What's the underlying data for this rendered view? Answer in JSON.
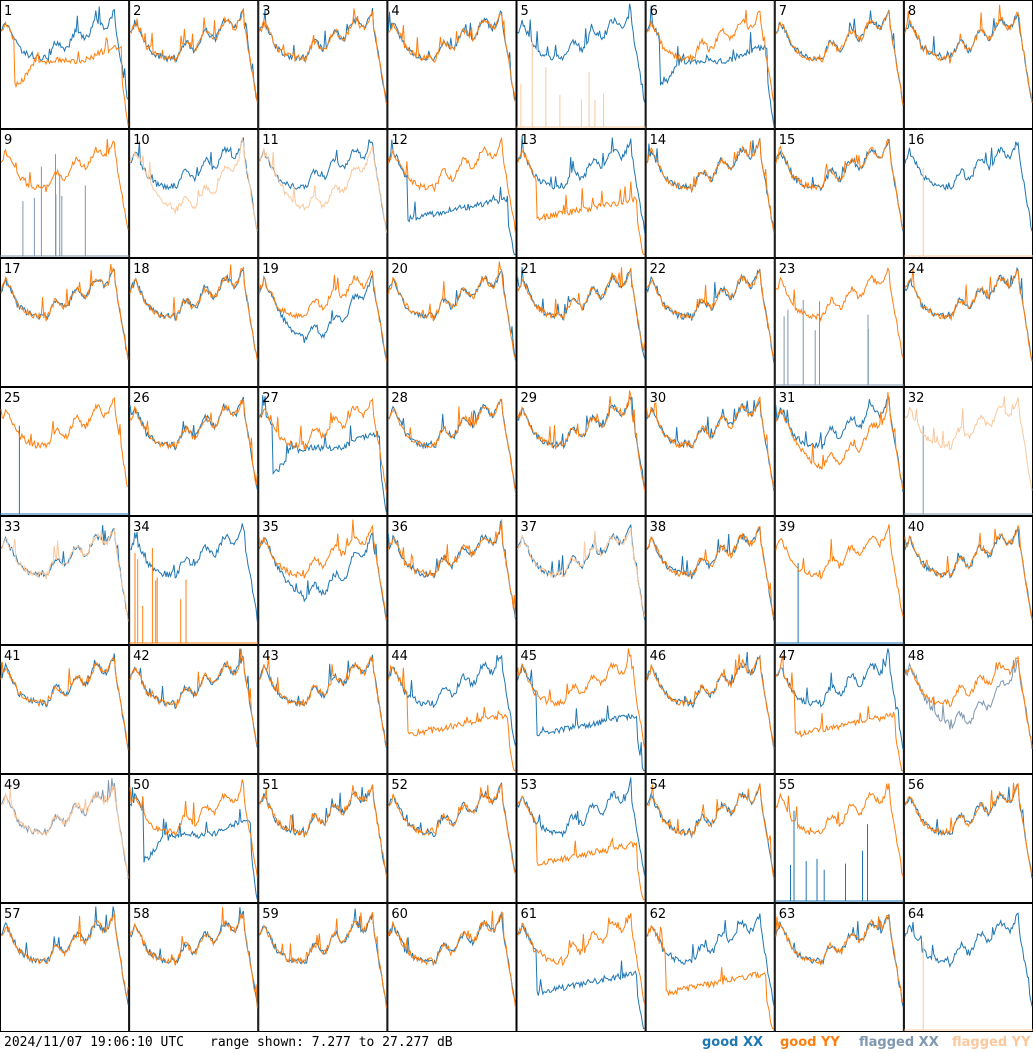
{
  "footer": {
    "timestamp": "2024/11/07 19:06:10 UTC",
    "range": "range shown: 7.277 to 27.277 dB"
  },
  "legend": [
    {
      "label": "good XX",
      "color": "#1f77b4"
    },
    {
      "label": "good YY",
      "color": "#ff7f0e"
    },
    {
      "label": "flagged XX",
      "color": "#7f98b0"
    },
    {
      "label": "flagged YY",
      "color": "#fbc89c"
    }
  ],
  "chart_data": {
    "type": "line",
    "ylim": [
      7.277,
      27.277
    ],
    "yunit": "dB",
    "grid_rows": 8,
    "grid_cols": 8,
    "panels": [
      {
        "id": "1",
        "xx": "good",
        "yy": "good",
        "xx_shape": "normal",
        "yy_shape": "drop"
      },
      {
        "id": "2",
        "xx": "good",
        "yy": "good",
        "xx_shape": "normal",
        "yy_shape": "normal"
      },
      {
        "id": "3",
        "xx": "good",
        "yy": "good",
        "xx_shape": "normal",
        "yy_shape": "normal"
      },
      {
        "id": "4",
        "xx": "good",
        "yy": "good",
        "xx_shape": "normal",
        "yy_shape": "normal"
      },
      {
        "id": "5",
        "xx": "good",
        "yy": "flagged",
        "xx_shape": "normal",
        "yy_shape": "sparse"
      },
      {
        "id": "6",
        "xx": "good",
        "yy": "good",
        "xx_shape": "drop",
        "yy_shape": "normal"
      },
      {
        "id": "7",
        "xx": "good",
        "yy": "good",
        "xx_shape": "normal",
        "yy_shape": "normal"
      },
      {
        "id": "8",
        "xx": "good",
        "yy": "good",
        "xx_shape": "normal",
        "yy_shape": "normal"
      },
      {
        "id": "9",
        "xx": "flagged",
        "yy": "good",
        "xx_shape": "sparse",
        "yy_shape": "normal"
      },
      {
        "id": "10",
        "xx": "good",
        "yy": "flagged",
        "xx_shape": "normal",
        "yy_shape": "dip"
      },
      {
        "id": "11",
        "xx": "good",
        "yy": "flagged",
        "xx_shape": "normal",
        "yy_shape": "dip"
      },
      {
        "id": "12",
        "xx": "good",
        "yy": "good",
        "xx_shape": "lowflat",
        "yy_shape": "normal"
      },
      {
        "id": "13",
        "xx": "good",
        "yy": "good",
        "xx_shape": "normal",
        "yy_shape": "lowflat"
      },
      {
        "id": "14",
        "xx": "good",
        "yy": "good",
        "xx_shape": "normal",
        "yy_shape": "normal"
      },
      {
        "id": "15",
        "xx": "good",
        "yy": "good",
        "xx_shape": "normal",
        "yy_shape": "normal"
      },
      {
        "id": "16",
        "xx": "good",
        "yy": "flagged",
        "xx_shape": "normal",
        "yy_shape": "flat"
      },
      {
        "id": "17",
        "xx": "good",
        "yy": "good",
        "xx_shape": "normal",
        "yy_shape": "normal"
      },
      {
        "id": "18",
        "xx": "good",
        "yy": "good",
        "xx_shape": "normal",
        "yy_shape": "normal"
      },
      {
        "id": "19",
        "xx": "good",
        "yy": "good",
        "xx_shape": "dip",
        "yy_shape": "normal"
      },
      {
        "id": "20",
        "xx": "good",
        "yy": "good",
        "xx_shape": "normal",
        "yy_shape": "normal"
      },
      {
        "id": "21",
        "xx": "good",
        "yy": "good",
        "xx_shape": "normal",
        "yy_shape": "normal"
      },
      {
        "id": "22",
        "xx": "good",
        "yy": "good",
        "xx_shape": "normal",
        "yy_shape": "normal"
      },
      {
        "id": "23",
        "xx": "flagged",
        "yy": "good",
        "xx_shape": "sparse",
        "yy_shape": "normal"
      },
      {
        "id": "24",
        "xx": "good",
        "yy": "good",
        "xx_shape": "normal",
        "yy_shape": "normal"
      },
      {
        "id": "25",
        "xx": "good",
        "yy": "good",
        "xx_shape": "flat",
        "yy_shape": "normal"
      },
      {
        "id": "26",
        "xx": "good",
        "yy": "good",
        "xx_shape": "normal",
        "yy_shape": "normal"
      },
      {
        "id": "27",
        "xx": "good",
        "yy": "good",
        "xx_shape": "drop",
        "yy_shape": "normal"
      },
      {
        "id": "28",
        "xx": "good",
        "yy": "good",
        "xx_shape": "normal",
        "yy_shape": "normal"
      },
      {
        "id": "29",
        "xx": "good",
        "yy": "good",
        "xx_shape": "normal",
        "yy_shape": "normal"
      },
      {
        "id": "30",
        "xx": "good",
        "yy": "good",
        "xx_shape": "normal",
        "yy_shape": "normal"
      },
      {
        "id": "31",
        "xx": "good",
        "yy": "good",
        "xx_shape": "normal",
        "yy_shape": "dip"
      },
      {
        "id": "32",
        "xx": "flagged",
        "yy": "flagged",
        "xx_shape": "flat",
        "yy_shape": "normal"
      },
      {
        "id": "33",
        "xx": "good",
        "yy": "flagged",
        "xx_shape": "normal",
        "yy_shape": "normal"
      },
      {
        "id": "34",
        "xx": "good",
        "yy": "good",
        "xx_shape": "normal",
        "yy_shape": "sparse"
      },
      {
        "id": "35",
        "xx": "good",
        "yy": "good",
        "xx_shape": "dip",
        "yy_shape": "normal"
      },
      {
        "id": "36",
        "xx": "good",
        "yy": "good",
        "xx_shape": "normal",
        "yy_shape": "normal"
      },
      {
        "id": "37",
        "xx": "good",
        "yy": "flagged",
        "xx_shape": "normal",
        "yy_shape": "normal"
      },
      {
        "id": "38",
        "xx": "good",
        "yy": "good",
        "xx_shape": "normal",
        "yy_shape": "normal"
      },
      {
        "id": "39",
        "xx": "good",
        "yy": "good",
        "xx_shape": "spike",
        "yy_shape": "normal"
      },
      {
        "id": "40",
        "xx": "good",
        "yy": "good",
        "xx_shape": "normal",
        "yy_shape": "normal"
      },
      {
        "id": "41",
        "xx": "good",
        "yy": "good",
        "xx_shape": "normal",
        "yy_shape": "normal"
      },
      {
        "id": "42",
        "xx": "good",
        "yy": "good",
        "xx_shape": "normal",
        "yy_shape": "normal"
      },
      {
        "id": "43",
        "xx": "good",
        "yy": "good",
        "xx_shape": "normal",
        "yy_shape": "normal"
      },
      {
        "id": "44",
        "xx": "good",
        "yy": "good",
        "xx_shape": "normal",
        "yy_shape": "lowflat"
      },
      {
        "id": "45",
        "xx": "good",
        "yy": "good",
        "xx_shape": "lowflat",
        "yy_shape": "normal"
      },
      {
        "id": "46",
        "xx": "good",
        "yy": "good",
        "xx_shape": "normal",
        "yy_shape": "normal"
      },
      {
        "id": "47",
        "xx": "good",
        "yy": "good",
        "xx_shape": "normal",
        "yy_shape": "lowflat"
      },
      {
        "id": "48",
        "xx": "flagged",
        "yy": "good",
        "xx_shape": "dip",
        "yy_shape": "normal"
      },
      {
        "id": "49",
        "xx": "flagged",
        "yy": "flagged",
        "xx_shape": "normal",
        "yy_shape": "normal"
      },
      {
        "id": "50",
        "xx": "good",
        "yy": "good",
        "xx_shape": "drop",
        "yy_shape": "normal"
      },
      {
        "id": "51",
        "xx": "good",
        "yy": "good",
        "xx_shape": "normal",
        "yy_shape": "normal"
      },
      {
        "id": "52",
        "xx": "good",
        "yy": "good",
        "xx_shape": "normal",
        "yy_shape": "normal"
      },
      {
        "id": "53",
        "xx": "good",
        "yy": "good",
        "xx_shape": "normal",
        "yy_shape": "lowflat"
      },
      {
        "id": "54",
        "xx": "good",
        "yy": "good",
        "xx_shape": "normal",
        "yy_shape": "normal"
      },
      {
        "id": "55",
        "xx": "good",
        "yy": "good",
        "xx_shape": "sparse",
        "yy_shape": "normal"
      },
      {
        "id": "56",
        "xx": "good",
        "yy": "good",
        "xx_shape": "normal",
        "yy_shape": "normal"
      },
      {
        "id": "57",
        "xx": "good",
        "yy": "good",
        "xx_shape": "normal",
        "yy_shape": "normal"
      },
      {
        "id": "58",
        "xx": "good",
        "yy": "good",
        "xx_shape": "normal",
        "yy_shape": "normal"
      },
      {
        "id": "59",
        "xx": "good",
        "yy": "good",
        "xx_shape": "normal",
        "yy_shape": "normal"
      },
      {
        "id": "60",
        "xx": "good",
        "yy": "good",
        "xx_shape": "normal",
        "yy_shape": "normal"
      },
      {
        "id": "61",
        "xx": "good",
        "yy": "good",
        "xx_shape": "lowflat",
        "yy_shape": "normal"
      },
      {
        "id": "62",
        "xx": "good",
        "yy": "good",
        "xx_shape": "normal",
        "yy_shape": "lowflat"
      },
      {
        "id": "63",
        "xx": "good",
        "yy": "good",
        "xx_shape": "normal",
        "yy_shape": "normal"
      },
      {
        "id": "64",
        "xx": "good",
        "yy": "flagged",
        "xx_shape": "normal",
        "yy_shape": "flat"
      }
    ]
  }
}
